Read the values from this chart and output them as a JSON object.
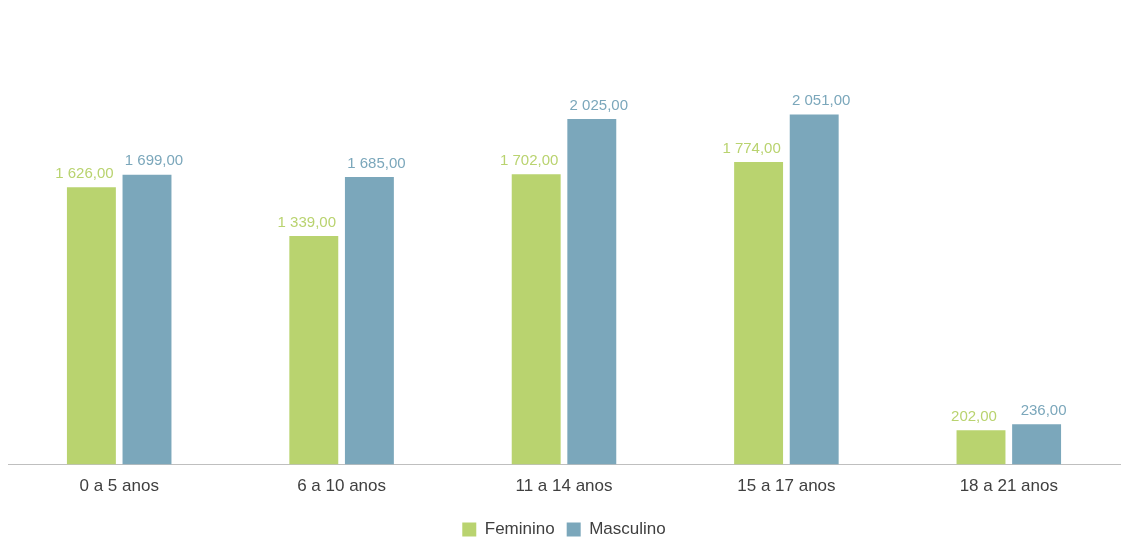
{
  "chart_data": {
    "type": "bar",
    "categories": [
      "0 a 5 anos",
      "6 a 10 anos",
      "11 a 14 anos",
      "15 a 17 anos",
      "18 a 21 anos"
    ],
    "series": [
      {
        "name": "Feminino",
        "color": "#b9d36f",
        "values": [
          1626,
          1339,
          1702,
          1774,
          202
        ],
        "value_labels": [
          "1 626,00",
          "1 339,00",
          "1 702,00",
          "1 774,00",
          "202,00"
        ]
      },
      {
        "name": "Masculino",
        "color": "#7ba7bb",
        "values": [
          1699,
          1685,
          2025,
          2051,
          236
        ],
        "value_labels": [
          "1 699,00",
          "1 685,00",
          "2 025,00",
          "2 051,00",
          "236,00"
        ]
      }
    ],
    "legend": "bottom",
    "grid": false,
    "tick_labels": "x"
  }
}
